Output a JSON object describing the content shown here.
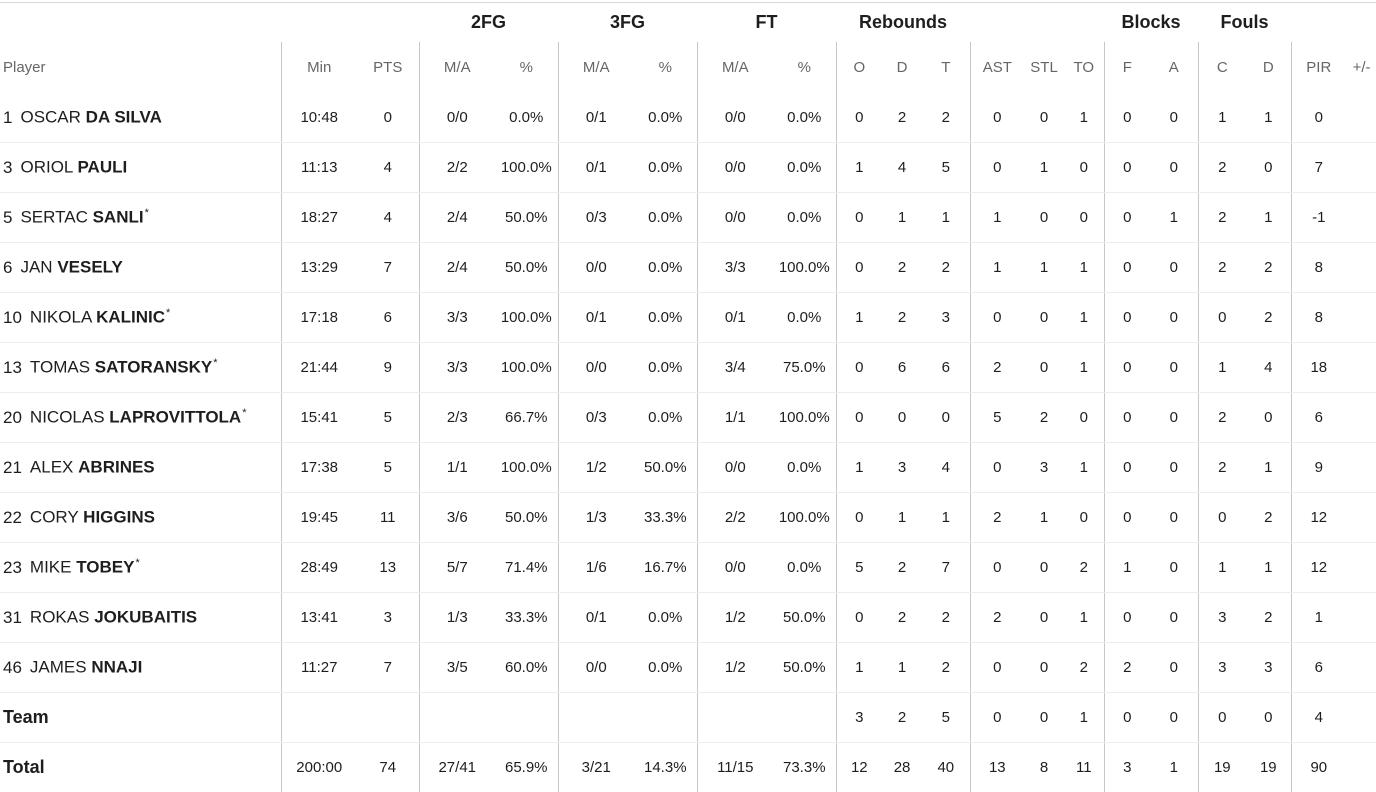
{
  "groups": {
    "fg2": "2FG",
    "fg3": "3FG",
    "ft": "FT",
    "rebounds": "Rebounds",
    "blocks": "Blocks",
    "fouls": "Fouls"
  },
  "headers": {
    "player": "Player",
    "min": "Min",
    "pts": "PTS",
    "fg2_ma": "M/A",
    "fg2_pct": "%",
    "fg3_ma": "M/A",
    "fg3_pct": "%",
    "ft_ma": "M/A",
    "ft_pct": "%",
    "reb_o": "O",
    "reb_d": "D",
    "reb_t": "T",
    "ast": "AST",
    "stl": "STL",
    "to": "TO",
    "blk_f": "F",
    "blk_a": "A",
    "foul_c": "C",
    "foul_d": "D",
    "pir": "PIR",
    "plusminus": "+/-"
  },
  "players": [
    {
      "num": "1",
      "first": "OSCAR",
      "last": "DA SILVA",
      "star": "",
      "min": "10:48",
      "pts": "0",
      "fg2_ma": "0/0",
      "fg2_pct": "0.0%",
      "fg3_ma": "0/1",
      "fg3_pct": "0.0%",
      "ft_ma": "0/0",
      "ft_pct": "0.0%",
      "reb_o": "0",
      "reb_d": "2",
      "reb_t": "2",
      "ast": "0",
      "stl": "0",
      "to": "1",
      "blk_f": "0",
      "blk_a": "0",
      "foul_c": "1",
      "foul_d": "1",
      "pir": "0",
      "plusminus": ""
    },
    {
      "num": "3",
      "first": "ORIOL",
      "last": "PAULI",
      "star": "",
      "min": "11:13",
      "pts": "4",
      "fg2_ma": "2/2",
      "fg2_pct": "100.0%",
      "fg3_ma": "0/1",
      "fg3_pct": "0.0%",
      "ft_ma": "0/0",
      "ft_pct": "0.0%",
      "reb_o": "1",
      "reb_d": "4",
      "reb_t": "5",
      "ast": "0",
      "stl": "1",
      "to": "0",
      "blk_f": "0",
      "blk_a": "0",
      "foul_c": "2",
      "foul_d": "0",
      "pir": "7",
      "plusminus": ""
    },
    {
      "num": "5",
      "first": "SERTAC",
      "last": "SANLI",
      "star": "*",
      "min": "18:27",
      "pts": "4",
      "fg2_ma": "2/4",
      "fg2_pct": "50.0%",
      "fg3_ma": "0/3",
      "fg3_pct": "0.0%",
      "ft_ma": "0/0",
      "ft_pct": "0.0%",
      "reb_o": "0",
      "reb_d": "1",
      "reb_t": "1",
      "ast": "1",
      "stl": "0",
      "to": "0",
      "blk_f": "0",
      "blk_a": "1",
      "foul_c": "2",
      "foul_d": "1",
      "pir": "-1",
      "plusminus": ""
    },
    {
      "num": "6",
      "first": "JAN",
      "last": "VESELY",
      "star": "",
      "min": "13:29",
      "pts": "7",
      "fg2_ma": "2/4",
      "fg2_pct": "50.0%",
      "fg3_ma": "0/0",
      "fg3_pct": "0.0%",
      "ft_ma": "3/3",
      "ft_pct": "100.0%",
      "reb_o": "0",
      "reb_d": "2",
      "reb_t": "2",
      "ast": "1",
      "stl": "1",
      "to": "1",
      "blk_f": "0",
      "blk_a": "0",
      "foul_c": "2",
      "foul_d": "2",
      "pir": "8",
      "plusminus": ""
    },
    {
      "num": "10",
      "first": "NIKOLA",
      "last": "KALINIC",
      "star": "*",
      "min": "17:18",
      "pts": "6",
      "fg2_ma": "3/3",
      "fg2_pct": "100.0%",
      "fg3_ma": "0/1",
      "fg3_pct": "0.0%",
      "ft_ma": "0/1",
      "ft_pct": "0.0%",
      "reb_o": "1",
      "reb_d": "2",
      "reb_t": "3",
      "ast": "0",
      "stl": "0",
      "to": "1",
      "blk_f": "0",
      "blk_a": "0",
      "foul_c": "0",
      "foul_d": "2",
      "pir": "8",
      "plusminus": ""
    },
    {
      "num": "13",
      "first": "TOMAS",
      "last": "SATORANSKY",
      "star": "*",
      "min": "21:44",
      "pts": "9",
      "fg2_ma": "3/3",
      "fg2_pct": "100.0%",
      "fg3_ma": "0/0",
      "fg3_pct": "0.0%",
      "ft_ma": "3/4",
      "ft_pct": "75.0%",
      "reb_o": "0",
      "reb_d": "6",
      "reb_t": "6",
      "ast": "2",
      "stl": "0",
      "to": "1",
      "blk_f": "0",
      "blk_a": "0",
      "foul_c": "1",
      "foul_d": "4",
      "pir": "18",
      "plusminus": ""
    },
    {
      "num": "20",
      "first": "NICOLAS",
      "last": "LAPROVITTOLA",
      "star": "*",
      "min": "15:41",
      "pts": "5",
      "fg2_ma": "2/3",
      "fg2_pct": "66.7%",
      "fg3_ma": "0/3",
      "fg3_pct": "0.0%",
      "ft_ma": "1/1",
      "ft_pct": "100.0%",
      "reb_o": "0",
      "reb_d": "0",
      "reb_t": "0",
      "ast": "5",
      "stl": "2",
      "to": "0",
      "blk_f": "0",
      "blk_a": "0",
      "foul_c": "2",
      "foul_d": "0",
      "pir": "6",
      "plusminus": ""
    },
    {
      "num": "21",
      "first": "ALEX",
      "last": "ABRINES",
      "star": "",
      "min": "17:38",
      "pts": "5",
      "fg2_ma": "1/1",
      "fg2_pct": "100.0%",
      "fg3_ma": "1/2",
      "fg3_pct": "50.0%",
      "ft_ma": "0/0",
      "ft_pct": "0.0%",
      "reb_o": "1",
      "reb_d": "3",
      "reb_t": "4",
      "ast": "0",
      "stl": "3",
      "to": "1",
      "blk_f": "0",
      "blk_a": "0",
      "foul_c": "2",
      "foul_d": "1",
      "pir": "9",
      "plusminus": ""
    },
    {
      "num": "22",
      "first": "CORY",
      "last": "HIGGINS",
      "star": "",
      "min": "19:45",
      "pts": "11",
      "fg2_ma": "3/6",
      "fg2_pct": "50.0%",
      "fg3_ma": "1/3",
      "fg3_pct": "33.3%",
      "ft_ma": "2/2",
      "ft_pct": "100.0%",
      "reb_o": "0",
      "reb_d": "1",
      "reb_t": "1",
      "ast": "2",
      "stl": "1",
      "to": "0",
      "blk_f": "0",
      "blk_a": "0",
      "foul_c": "0",
      "foul_d": "2",
      "pir": "12",
      "plusminus": ""
    },
    {
      "num": "23",
      "first": "MIKE",
      "last": "TOBEY",
      "star": "*",
      "min": "28:49",
      "pts": "13",
      "fg2_ma": "5/7",
      "fg2_pct": "71.4%",
      "fg3_ma": "1/6",
      "fg3_pct": "16.7%",
      "ft_ma": "0/0",
      "ft_pct": "0.0%",
      "reb_o": "5",
      "reb_d": "2",
      "reb_t": "7",
      "ast": "0",
      "stl": "0",
      "to": "2",
      "blk_f": "1",
      "blk_a": "0",
      "foul_c": "1",
      "foul_d": "1",
      "pir": "12",
      "plusminus": ""
    },
    {
      "num": "31",
      "first": "ROKAS",
      "last": "JOKUBAITIS",
      "star": "",
      "min": "13:41",
      "pts": "3",
      "fg2_ma": "1/3",
      "fg2_pct": "33.3%",
      "fg3_ma": "0/1",
      "fg3_pct": "0.0%",
      "ft_ma": "1/2",
      "ft_pct": "50.0%",
      "reb_o": "0",
      "reb_d": "2",
      "reb_t": "2",
      "ast": "2",
      "stl": "0",
      "to": "1",
      "blk_f": "0",
      "blk_a": "0",
      "foul_c": "3",
      "foul_d": "2",
      "pir": "1",
      "plusminus": ""
    },
    {
      "num": "46",
      "first": "JAMES",
      "last": "NNAJI",
      "star": "",
      "min": "11:27",
      "pts": "7",
      "fg2_ma": "3/5",
      "fg2_pct": "60.0%",
      "fg3_ma": "0/0",
      "fg3_pct": "0.0%",
      "ft_ma": "1/2",
      "ft_pct": "50.0%",
      "reb_o": "1",
      "reb_d": "1",
      "reb_t": "2",
      "ast": "0",
      "stl": "0",
      "to": "2",
      "blk_f": "2",
      "blk_a": "0",
      "foul_c": "3",
      "foul_d": "3",
      "pir": "6",
      "plusminus": ""
    }
  ],
  "team": {
    "label": "Team",
    "min": "",
    "pts": "",
    "fg2_ma": "",
    "fg2_pct": "",
    "fg3_ma": "",
    "fg3_pct": "",
    "ft_ma": "",
    "ft_pct": "",
    "reb_o": "3",
    "reb_d": "2",
    "reb_t": "5",
    "ast": "0",
    "stl": "0",
    "to": "1",
    "blk_f": "0",
    "blk_a": "0",
    "foul_c": "0",
    "foul_d": "0",
    "pir": "4",
    "plusminus": ""
  },
  "total": {
    "label": "Total",
    "min": "200:00",
    "pts": "74",
    "fg2_ma": "27/41",
    "fg2_pct": "65.9%",
    "fg3_ma": "3/21",
    "fg3_pct": "14.3%",
    "ft_ma": "11/15",
    "ft_pct": "73.3%",
    "reb_o": "12",
    "reb_d": "28",
    "reb_t": "40",
    "ast": "13",
    "stl": "8",
    "to": "11",
    "blk_f": "3",
    "blk_a": "1",
    "foul_c": "19",
    "foul_d": "19",
    "pir": "90",
    "plusminus": ""
  }
}
